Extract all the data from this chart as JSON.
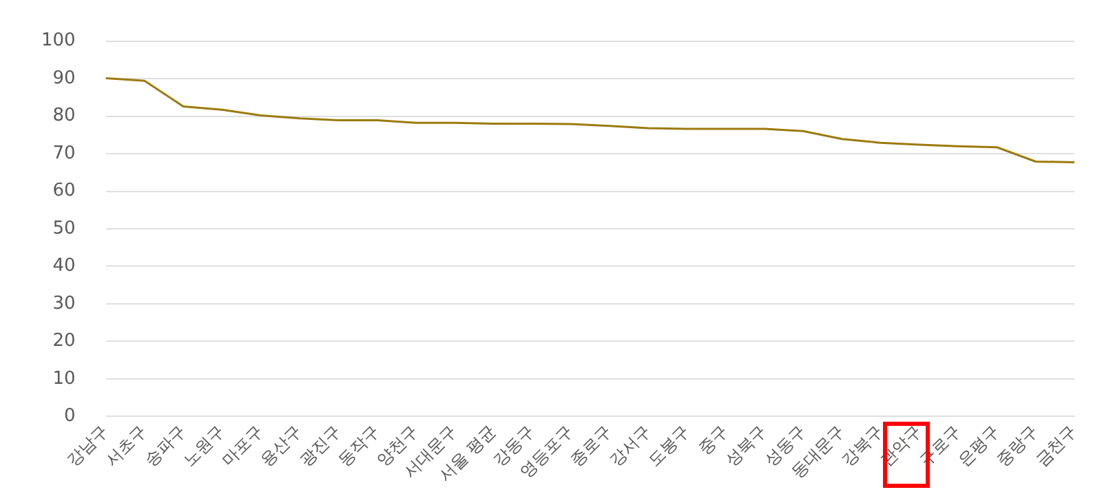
{
  "chart_data": {
    "type": "line",
    "categories": [
      "강남구",
      "서초구",
      "송파구",
      "노원구",
      "마포구",
      "용산구",
      "광진구",
      "동작구",
      "양천구",
      "서대문구",
      "서울 평균",
      "강동구",
      "영등포구",
      "종로구",
      "강서구",
      "도봉구",
      "중구",
      "성북구",
      "성동구",
      "동대문구",
      "강북구",
      "관악구",
      "구로구",
      "은평구",
      "중랑구",
      "금천구"
    ],
    "series": [
      {
        "color": "#9c7a0c",
        "values": [
          90.1,
          89.4,
          82.6,
          81.7,
          80.2,
          79.4,
          78.9,
          78.9,
          78.2,
          78.2,
          78.0,
          78.0,
          77.9,
          77.4,
          76.8,
          76.6,
          76.6,
          76.6,
          76.0,
          73.9,
          72.9,
          72.4,
          72.0,
          71.7,
          67.9,
          67.7
        ]
      }
    ],
    "ylim": [
      0,
      100
    ],
    "yticks": [
      0,
      10,
      20,
      30,
      40,
      50,
      60,
      70,
      80,
      90,
      100
    ],
    "grid": "y",
    "legend": false,
    "marker": "none",
    "line_style": "solid"
  }
}
